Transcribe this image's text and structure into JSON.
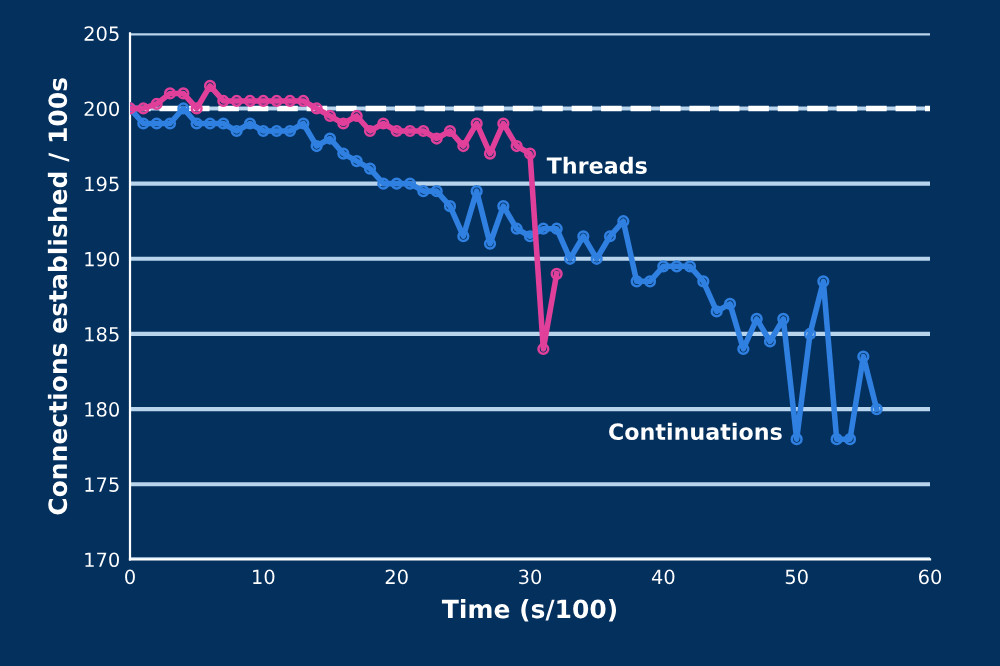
{
  "chart_data": {
    "type": "line",
    "xlabel": "Time (s/100)",
    "ylabel": "Connections established / 100s",
    "xlim": [
      0,
      60
    ],
    "ylim": [
      170,
      205
    ],
    "xticks": [
      0,
      10,
      20,
      30,
      40,
      50,
      60
    ],
    "yticks": [
      170,
      175,
      180,
      185,
      190,
      195,
      200,
      205
    ],
    "grid": "y",
    "marker": "circle",
    "line_style": "solid",
    "legend": false,
    "ref_lines": [
      {
        "axis": "y",
        "value": 200,
        "color": "#ffffff",
        "line_style": "dashed"
      }
    ],
    "series": [
      {
        "name": "Threads",
        "color": "#e0409a",
        "x": [
          0,
          1,
          2,
          3,
          4,
          5,
          6,
          7,
          8,
          9,
          10,
          11,
          12,
          13,
          14,
          15,
          16,
          17,
          18,
          19,
          20,
          21,
          22,
          23,
          24,
          25,
          26,
          27,
          28,
          29,
          30,
          31,
          32
        ],
        "values": [
          200,
          200,
          200.3,
          201,
          201,
          200,
          201.5,
          200.5,
          200.5,
          200.5,
          200.5,
          200.5,
          200.5,
          200.5,
          200,
          199.5,
          199,
          199.5,
          198.5,
          199,
          198.5,
          198.5,
          198.5,
          198,
          198.5,
          197.5,
          199,
          197,
          199,
          197.5,
          197,
          184,
          189
        ]
      },
      {
        "name": "Continuations",
        "color": "#2f80e0",
        "x": [
          0,
          1,
          2,
          3,
          4,
          5,
          6,
          7,
          8,
          9,
          10,
          11,
          12,
          13,
          14,
          15,
          16,
          17,
          18,
          19,
          20,
          21,
          22,
          23,
          24,
          25,
          26,
          27,
          28,
          29,
          30,
          31,
          32,
          33,
          34,
          35,
          36,
          37,
          38,
          39,
          40,
          41,
          42,
          43,
          44,
          45,
          46,
          47,
          48,
          49,
          50,
          51,
          52,
          53,
          54,
          55,
          56
        ],
        "values": [
          200,
          199,
          199,
          199,
          200,
          199,
          199,
          199,
          198.5,
          199,
          198.5,
          198.5,
          198.5,
          199,
          197.5,
          198,
          197,
          196.5,
          196,
          195,
          195,
          195,
          194.5,
          194.5,
          193.5,
          191.5,
          194.5,
          191,
          193.5,
          192,
          191.5,
          192,
          192,
          190,
          191.5,
          190,
          191.5,
          192.5,
          188.5,
          188.5,
          189.5,
          189.5,
          189.5,
          188.5,
          186.5,
          187,
          184,
          186,
          184.5,
          186,
          178,
          185,
          188.5,
          178,
          178,
          183.5,
          180
        ]
      }
    ]
  }
}
